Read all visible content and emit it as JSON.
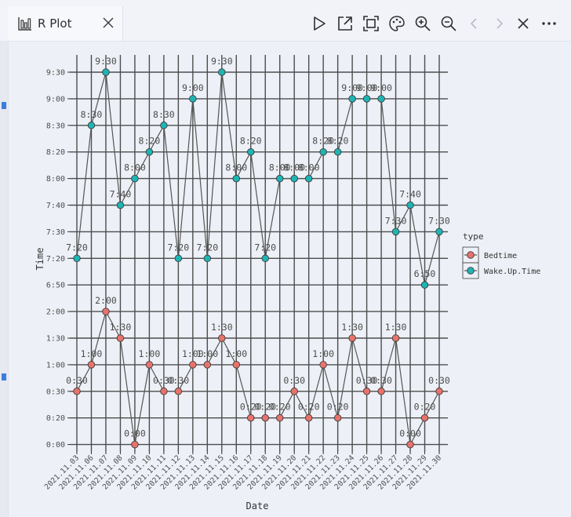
{
  "tab": {
    "title": "R Plot",
    "icon": "bar-chart-icon"
  },
  "toolbar": [
    "play-icon",
    "open-external-icon",
    "fit-screen-icon",
    "palette-icon",
    "zoom-in-icon",
    "zoom-out-icon",
    "chevron-left-icon",
    "chevron-right-icon",
    "close-icon",
    "more-icon"
  ],
  "colors": {
    "bedtime": "#e8736c",
    "wake": "#1fb4b4",
    "grid": "#4d4d4d",
    "line": "#555555",
    "text": "#4d4d4d"
  },
  "chart_data": {
    "type": "line",
    "title": "",
    "xlabel": "Date",
    "ylabel": "Time",
    "y_ticks": [
      "0:00",
      "0:20",
      "0:30",
      "1:00",
      "1:30",
      "2:00",
      "6:50",
      "7:20",
      "7:30",
      "7:40",
      "8:00",
      "8:20",
      "8:30",
      "9:00",
      "9:30"
    ],
    "categories": [
      "2021.11.03",
      "2021.11.06",
      "2021.11.07",
      "2021.11.08",
      "2021.11.09",
      "2021.11.10",
      "2021.11.11",
      "2021.11.12",
      "2021.11.13",
      "2021.11.14",
      "2021.11.15",
      "2021.11.16",
      "2021.11.17",
      "2021.11.18",
      "2021.11.19",
      "2021.11.20",
      "2021.11.21",
      "2021.11.22",
      "2021.11.23",
      "2021.11.24",
      "2021.11.25",
      "2021.11.26",
      "2021.11.27",
      "2021.11.28",
      "2021.11.29",
      "2021.11.30"
    ],
    "series": [
      {
        "name": "Bedtime",
        "values": [
          "0:30",
          "1:00",
          "2:00",
          "1:30",
          "0:00",
          "1:00",
          "0:30",
          "0:30",
          "1:00",
          "1:00",
          "1:30",
          "1:00",
          "0:20",
          "0:20",
          "0:20",
          "0:30",
          "0:20",
          "1:00",
          "0:20",
          "1:30",
          "0:30",
          "0:30",
          "1:30",
          "0:00",
          "0:20",
          "0:30"
        ]
      },
      {
        "name": "Wake.Up.Time",
        "values": [
          "7:20",
          "8:30",
          "9:30",
          "7:40",
          "8:00",
          "8:20",
          "8:30",
          "7:20",
          "9:00",
          "7:20",
          "9:30",
          "8:00",
          "8:20",
          "7:20",
          "8:00",
          "8:00",
          "8:00",
          "8:20",
          "8:20",
          "9:00",
          "9:00",
          "9:00",
          "7:30",
          "7:40",
          "6:50",
          "7:30"
        ]
      }
    ],
    "legend": {
      "title": "type",
      "entries": [
        "Bedtime",
        "Wake.Up.Time"
      ],
      "position": "right"
    }
  }
}
